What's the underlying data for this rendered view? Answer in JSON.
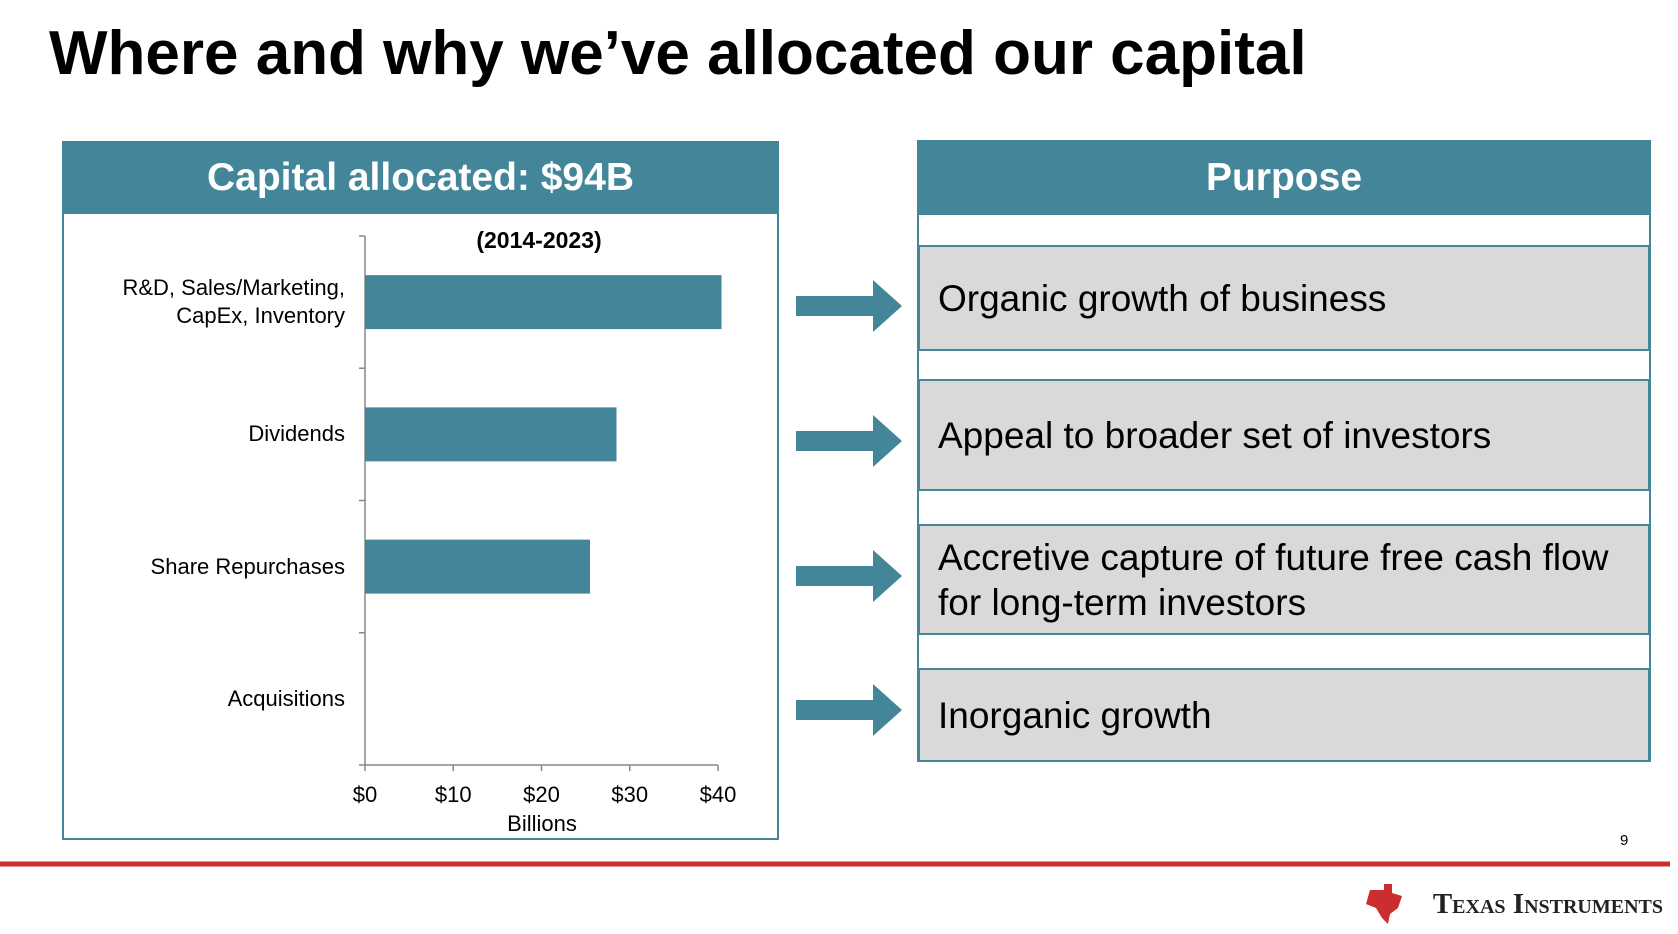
{
  "header": {
    "title": "Where and why we’ve allocated our capital"
  },
  "chart_data": {
    "type": "bar",
    "orientation": "horizontal",
    "title": "Capital allocated: $94B",
    "subtitle": "(2014-2023)",
    "x_label": "Billions",
    "categories": [
      "R&D, Sales/Marketing, CapEx, Inventory",
      "Dividends",
      "Share Repurchases",
      "Acquisitions"
    ],
    "values": [
      40.4,
      28.5,
      25.5,
      0
    ],
    "color": "#43869a",
    "xlim": [
      0,
      40
    ],
    "xticks": [
      {
        "value": 0,
        "label": "$0"
      },
      {
        "value": 10,
        "label": "$10"
      },
      {
        "value": 20,
        "label": "$20"
      },
      {
        "value": 30,
        "label": "$30"
      },
      {
        "value": 40,
        "label": "$40"
      }
    ]
  },
  "purpose": {
    "title": "Purpose",
    "items": [
      "Organic growth of business",
      "Appeal to broader set of investors",
      "Accretive capture of future free cash flow for long-term investors",
      "Inorganic growth"
    ]
  },
  "footer": {
    "page_number": "9",
    "brand": "Texas Instruments"
  }
}
